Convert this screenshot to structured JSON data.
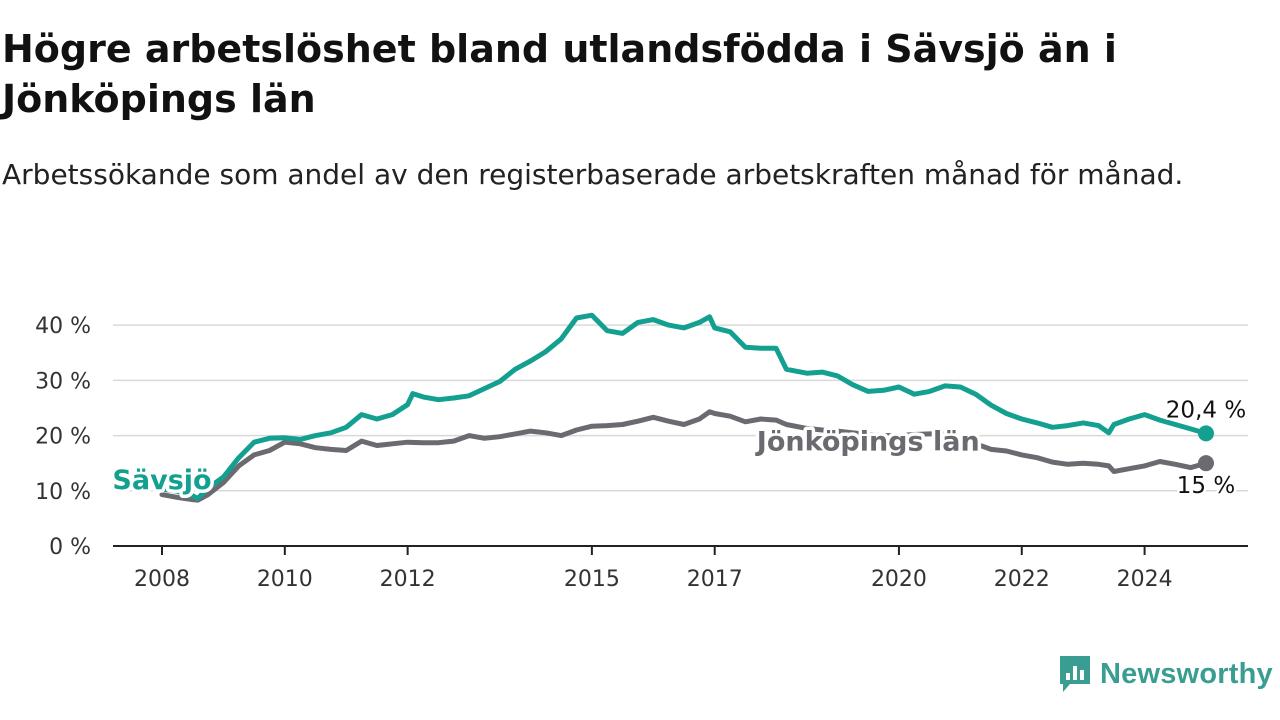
{
  "header": {
    "title": "Högre arbetslöshet bland utlandsfödda i Sävsjö än i Jönköpings län",
    "subtitle": "Arbetssökande som andel av den registerbaserade arbetskraften månad för månad."
  },
  "brand": {
    "name": "Newsworthy",
    "icon": "newsworthy-logo-icon",
    "color": "#3a9d92"
  },
  "colors": {
    "savsjo": "#14a091",
    "lan": "#6b6a70",
    "grid": "#d9d9d9",
    "axis": "#222222"
  },
  "chart_data": {
    "type": "line",
    "title": "Högre arbetslöshet bland utlandsfödda i Sävsjö än i Jönköpings län",
    "xlabel": "",
    "ylabel": "",
    "x_ticks": [
      "2008",
      "2010",
      "2012",
      "2015",
      "2017",
      "2020",
      "2022",
      "2024"
    ],
    "y_ticks": [
      "0 %",
      "10 %",
      "20 %",
      "30 %",
      "40 %"
    ],
    "ylim": [
      0,
      46
    ],
    "grid": "horizontal",
    "legend": "inline labels",
    "series": [
      {
        "name": "Sävsjö",
        "color": "#14a091",
        "end_label": "20,4 %",
        "points": [
          [
            "2008-01",
            10.3
          ],
          [
            "2008-04",
            9.9
          ],
          [
            "2008-07",
            9.1
          ],
          [
            "2008-08",
            8.6
          ],
          [
            "2008-10",
            10.5
          ],
          [
            "2009-01",
            12.5
          ],
          [
            "2009-04",
            16.0
          ],
          [
            "2009-07",
            18.8
          ],
          [
            "2009-10",
            19.5
          ],
          [
            "2010-01",
            19.6
          ],
          [
            "2010-04",
            19.3
          ],
          [
            "2010-07",
            20.0
          ],
          [
            "2010-10",
            20.5
          ],
          [
            "2011-01",
            21.5
          ],
          [
            "2011-04",
            23.8
          ],
          [
            "2011-07",
            23.0
          ],
          [
            "2011-10",
            23.8
          ],
          [
            "2012-01",
            25.6
          ],
          [
            "2012-02",
            27.6
          ],
          [
            "2012-04",
            27.0
          ],
          [
            "2012-07",
            26.5
          ],
          [
            "2012-10",
            26.8
          ],
          [
            "2013-01",
            27.2
          ],
          [
            "2013-04",
            28.5
          ],
          [
            "2013-07",
            29.8
          ],
          [
            "2013-10",
            32.0
          ],
          [
            "2014-01",
            33.5
          ],
          [
            "2014-04",
            35.2
          ],
          [
            "2014-07",
            37.5
          ],
          [
            "2014-10",
            41.3
          ],
          [
            "2015-01",
            41.8
          ],
          [
            "2015-04",
            39.0
          ],
          [
            "2015-07",
            38.5
          ],
          [
            "2015-10",
            40.5
          ],
          [
            "2016-01",
            41.0
          ],
          [
            "2016-04",
            40.0
          ],
          [
            "2016-07",
            39.5
          ],
          [
            "2016-10",
            40.5
          ],
          [
            "2016-12",
            41.5
          ],
          [
            "2017-01",
            39.5
          ],
          [
            "2017-04",
            38.8
          ],
          [
            "2017-07",
            36.0
          ],
          [
            "2017-10",
            35.8
          ],
          [
            "2018-01",
            35.8
          ],
          [
            "2018-03",
            32.0
          ],
          [
            "2018-07",
            31.3
          ],
          [
            "2018-10",
            31.5
          ],
          [
            "2019-01",
            30.8
          ],
          [
            "2019-04",
            29.2
          ],
          [
            "2019-07",
            28.0
          ],
          [
            "2019-10",
            28.2
          ],
          [
            "2020-01",
            28.8
          ],
          [
            "2020-04",
            27.5
          ],
          [
            "2020-07",
            28.0
          ],
          [
            "2020-10",
            29.0
          ],
          [
            "2021-01",
            28.8
          ],
          [
            "2021-04",
            27.5
          ],
          [
            "2021-07",
            25.5
          ],
          [
            "2021-10",
            24.0
          ],
          [
            "2022-01",
            23.0
          ],
          [
            "2022-04",
            22.3
          ],
          [
            "2022-07",
            21.5
          ],
          [
            "2022-10",
            21.8
          ],
          [
            "2023-01",
            22.3
          ],
          [
            "2023-04",
            21.8
          ],
          [
            "2023-06",
            20.5
          ],
          [
            "2023-07",
            22.0
          ],
          [
            "2023-10",
            23.0
          ],
          [
            "2024-01",
            23.8
          ],
          [
            "2024-04",
            22.8
          ],
          [
            "2024-07",
            22.0
          ],
          [
            "2024-10",
            21.2
          ],
          [
            "2025-01",
            20.4
          ]
        ]
      },
      {
        "name": "Jönköpings län",
        "color": "#6b6a70",
        "end_label": "15 %",
        "points": [
          [
            "2008-01",
            9.3
          ],
          [
            "2008-04",
            8.8
          ],
          [
            "2008-07",
            8.4
          ],
          [
            "2008-08",
            8.3
          ],
          [
            "2008-10",
            9.3
          ],
          [
            "2009-01",
            11.5
          ],
          [
            "2009-04",
            14.5
          ],
          [
            "2009-07",
            16.5
          ],
          [
            "2009-10",
            17.3
          ],
          [
            "2010-01",
            18.8
          ],
          [
            "2010-04",
            18.5
          ],
          [
            "2010-07",
            17.8
          ],
          [
            "2010-10",
            17.5
          ],
          [
            "2011-01",
            17.3
          ],
          [
            "2011-04",
            19.0
          ],
          [
            "2011-07",
            18.2
          ],
          [
            "2011-10",
            18.5
          ],
          [
            "2012-01",
            18.8
          ],
          [
            "2012-04",
            18.7
          ],
          [
            "2012-07",
            18.7
          ],
          [
            "2012-10",
            19.0
          ],
          [
            "2013-01",
            20.0
          ],
          [
            "2013-04",
            19.5
          ],
          [
            "2013-07",
            19.8
          ],
          [
            "2013-10",
            20.3
          ],
          [
            "2014-01",
            20.8
          ],
          [
            "2014-04",
            20.5
          ],
          [
            "2014-07",
            20.0
          ],
          [
            "2014-10",
            21.0
          ],
          [
            "2015-01",
            21.7
          ],
          [
            "2015-04",
            21.8
          ],
          [
            "2015-07",
            22.0
          ],
          [
            "2015-10",
            22.6
          ],
          [
            "2016-01",
            23.3
          ],
          [
            "2016-04",
            22.6
          ],
          [
            "2016-07",
            22.0
          ],
          [
            "2016-10",
            23.0
          ],
          [
            "2016-12",
            24.3
          ],
          [
            "2017-01",
            24.0
          ],
          [
            "2017-04",
            23.5
          ],
          [
            "2017-07",
            22.5
          ],
          [
            "2017-10",
            23.0
          ],
          [
            "2018-01",
            22.8
          ],
          [
            "2018-03",
            22.0
          ],
          [
            "2018-07",
            21.3
          ],
          [
            "2018-10",
            21.0
          ],
          [
            "2019-01",
            20.8
          ],
          [
            "2019-04",
            20.5
          ],
          [
            "2019-07",
            20.2
          ],
          [
            "2019-10",
            20.0
          ],
          [
            "2020-01",
            20.0
          ],
          [
            "2020-04",
            20.2
          ],
          [
            "2020-07",
            20.3
          ],
          [
            "2020-10",
            20.3
          ],
          [
            "2021-01",
            19.5
          ],
          [
            "2021-04",
            18.5
          ],
          [
            "2021-07",
            17.5
          ],
          [
            "2021-10",
            17.2
          ],
          [
            "2022-01",
            16.5
          ],
          [
            "2022-04",
            16.0
          ],
          [
            "2022-07",
            15.2
          ],
          [
            "2022-10",
            14.8
          ],
          [
            "2023-01",
            15.0
          ],
          [
            "2023-04",
            14.8
          ],
          [
            "2023-06",
            14.5
          ],
          [
            "2023-07",
            13.5
          ],
          [
            "2023-10",
            14.0
          ],
          [
            "2024-01",
            14.5
          ],
          [
            "2024-04",
            15.3
          ],
          [
            "2024-07",
            14.8
          ],
          [
            "2024-10",
            14.2
          ],
          [
            "2025-01",
            15.0
          ]
        ]
      }
    ]
  }
}
